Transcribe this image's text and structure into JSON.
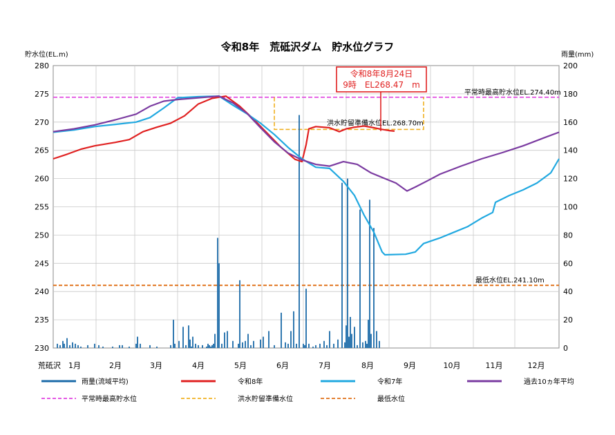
{
  "chart_data": {
    "type": "line",
    "title": "令和8年　荒砥沢ダム　貯水位グラフ",
    "ylabel_left": "貯水位(EL.m)",
    "ylabel_right": "雨量(mm)",
    "ylim_left": [
      230,
      280
    ],
    "ylim_right": [
      0,
      200
    ],
    "yticks_left": [
      "230",
      "235",
      "240",
      "245",
      "250",
      "255",
      "260",
      "265",
      "270",
      "275",
      "280"
    ],
    "yticks_right": [
      "0",
      "20",
      "40",
      "60",
      "80",
      "100",
      "120",
      "140",
      "160",
      "180",
      "200"
    ],
    "station_label": "荒砥沢",
    "months": [
      "1月",
      "2月",
      "3月",
      "4月",
      "5月",
      "6月",
      "7月",
      "8月",
      "9月",
      "10月",
      "11月",
      "12月"
    ],
    "grid": true,
    "reference_lines": [
      {
        "name": "平常時最高貯水位",
        "label": "平常時最高貯水位EL.274.40m",
        "value": 274.4,
        "color": "#e040e0"
      },
      {
        "name": "洪水貯留準備水位",
        "label": "洪水貯留準備水位EL.268.70m",
        "value": 268.7,
        "color": "#f0b020",
        "start_day": 160,
        "end_day": 268,
        "upper": 274.4
      },
      {
        "name": "最低水位",
        "label": "最低水位EL.241.10m",
        "value": 241.1,
        "color": "#e07018"
      }
    ],
    "callout": {
      "line1": "令和8年8月24日",
      "line2": "9時　EL268.47　m",
      "color": "#e02020"
    },
    "series": [
      {
        "name": "令和8年",
        "color": "#e02020",
        "width": 2.2,
        "points": [
          [
            0,
            263.5
          ],
          [
            10,
            264.3
          ],
          [
            20,
            265.2
          ],
          [
            30,
            265.8
          ],
          [
            45,
            266.4
          ],
          [
            55,
            266.9
          ],
          [
            65,
            268.3
          ],
          [
            75,
            269.1
          ],
          [
            85,
            269.8
          ],
          [
            95,
            271.1
          ],
          [
            105,
            273.2
          ],
          [
            115,
            274.2
          ],
          [
            125,
            274.6
          ],
          [
            135,
            272.8
          ],
          [
            145,
            270.5
          ],
          [
            155,
            268.0
          ],
          [
            165,
            265.5
          ],
          [
            175,
            263.4
          ],
          [
            180,
            263.0
          ],
          [
            183,
            266.0
          ],
          [
            185,
            268.8
          ],
          [
            190,
            269.2
          ],
          [
            200,
            269.0
          ],
          [
            207,
            268.3
          ],
          [
            212,
            268.8
          ],
          [
            218,
            269.1
          ],
          [
            225,
            269.3
          ],
          [
            232,
            269.0
          ],
          [
            238,
            268.7
          ],
          [
            243,
            268.5
          ],
          [
            247,
            268.4
          ]
        ]
      },
      {
        "name": "令和7年",
        "color": "#20a8e0",
        "width": 2.2,
        "points": [
          [
            0,
            268.2
          ],
          [
            15,
            268.6
          ],
          [
            30,
            269.2
          ],
          [
            45,
            269.6
          ],
          [
            60,
            270.0
          ],
          [
            70,
            270.8
          ],
          [
            80,
            272.5
          ],
          [
            90,
            274.3
          ],
          [
            105,
            274.5
          ],
          [
            120,
            274.6
          ],
          [
            130,
            273.0
          ],
          [
            140,
            271.5
          ],
          [
            150,
            269.8
          ],
          [
            160,
            267.8
          ],
          [
            170,
            265.5
          ],
          [
            180,
            263.5
          ],
          [
            190,
            262.0
          ],
          [
            200,
            261.8
          ],
          [
            210,
            259.5
          ],
          [
            218,
            257.0
          ],
          [
            225,
            253.5
          ],
          [
            232,
            250.5
          ],
          [
            238,
            247.0
          ],
          [
            240,
            246.5
          ],
          [
            255,
            246.6
          ],
          [
            262,
            247.0
          ],
          [
            268,
            248.5
          ],
          [
            280,
            249.5
          ],
          [
            290,
            250.5
          ],
          [
            300,
            251.5
          ],
          [
            310,
            253.0
          ],
          [
            318,
            254.0
          ],
          [
            320,
            255.8
          ],
          [
            330,
            257.0
          ],
          [
            340,
            258.0
          ],
          [
            350,
            259.2
          ],
          [
            360,
            261.0
          ],
          [
            366,
            263.5
          ]
        ]
      },
      {
        "name": "過去10ヵ年平均",
        "color": "#7a3aa0",
        "width": 2.2,
        "points": [
          [
            0,
            268.3
          ],
          [
            15,
            268.8
          ],
          [
            30,
            269.5
          ],
          [
            45,
            270.4
          ],
          [
            60,
            271.4
          ],
          [
            70,
            272.8
          ],
          [
            80,
            273.7
          ],
          [
            90,
            274.0
          ],
          [
            105,
            274.3
          ],
          [
            120,
            274.6
          ],
          [
            130,
            273.4
          ],
          [
            140,
            271.6
          ],
          [
            150,
            269.0
          ],
          [
            160,
            266.5
          ],
          [
            170,
            264.5
          ],
          [
            180,
            263.3
          ],
          [
            190,
            262.5
          ],
          [
            200,
            262.2
          ],
          [
            210,
            263.0
          ],
          [
            220,
            262.5
          ],
          [
            230,
            261.0
          ],
          [
            240,
            260.0
          ],
          [
            248,
            259.2
          ],
          [
            256,
            257.8
          ],
          [
            262,
            258.5
          ],
          [
            270,
            259.5
          ],
          [
            280,
            260.8
          ],
          [
            295,
            262.2
          ],
          [
            310,
            263.5
          ],
          [
            325,
            264.6
          ],
          [
            340,
            265.8
          ],
          [
            355,
            267.2
          ],
          [
            366,
            268.2
          ]
        ]
      }
    ],
    "rainfall": {
      "name": "雨量(流域平均)",
      "color": "#1a6aa8",
      "days": [
        3,
        5,
        7,
        8,
        10,
        12,
        14,
        16,
        18,
        20,
        25,
        30,
        33,
        36,
        43,
        48,
        50,
        55,
        60,
        61,
        63,
        70,
        75,
        85,
        87,
        88,
        91,
        94,
        96,
        98,
        99,
        100,
        101,
        103,
        105,
        108,
        111,
        112,
        113,
        114,
        115,
        116,
        117,
        119,
        120,
        122,
        124,
        126,
        130,
        134,
        135,
        137,
        139,
        141,
        143,
        145,
        150,
        152,
        156,
        160,
        165,
        168,
        170,
        172,
        174,
        176,
        178,
        181,
        182,
        183,
        185,
        188,
        190,
        193,
        196,
        198,
        200,
        203,
        206,
        209,
        211,
        212,
        213,
        214,
        215,
        216,
        218,
        220,
        222,
        224,
        226,
        227,
        228,
        229,
        230,
        232,
        234,
        236
      ],
      "values": [
        3,
        2,
        5,
        3,
        7,
        2,
        4,
        3,
        2,
        1,
        2,
        3,
        2,
        1,
        1,
        2,
        2,
        1,
        3,
        8,
        3,
        2,
        1,
        2,
        20,
        3,
        5,
        15,
        2,
        16,
        6,
        1,
        8,
        3,
        2,
        2,
        1,
        3,
        2,
        1,
        2,
        3,
        10,
        78,
        60,
        3,
        11,
        12,
        5,
        3,
        48,
        4,
        5,
        10,
        2,
        5,
        6,
        8,
        12,
        2,
        25,
        4,
        3,
        12,
        26,
        3,
        165,
        3,
        2,
        42,
        3,
        1,
        2,
        3,
        5,
        2,
        12,
        3,
        6,
        117,
        4,
        16,
        120,
        8,
        22,
        10,
        15,
        2,
        98,
        4,
        5,
        3,
        20,
        105,
        10,
        85,
        12,
        5
      ]
    },
    "legend": [
      {
        "label": "雨量(流域平均)",
        "color": "#1a6aa8",
        "style": "solid"
      },
      {
        "label": "令和8年",
        "color": "#e02020",
        "style": "solid"
      },
      {
        "label": "令和7年",
        "color": "#20a8e0",
        "style": "solid"
      },
      {
        "label": "過去10ヵ年平均",
        "color": "#7a3aa0",
        "style": "solid"
      },
      {
        "label": "平常時最高貯水位",
        "color": "#e040e0",
        "style": "dashed"
      },
      {
        "label": "洪水貯留準備水位",
        "color": "#f0b020",
        "style": "dashed"
      },
      {
        "label": "最低水位",
        "color": "#e07018",
        "style": "dashed"
      }
    ]
  }
}
